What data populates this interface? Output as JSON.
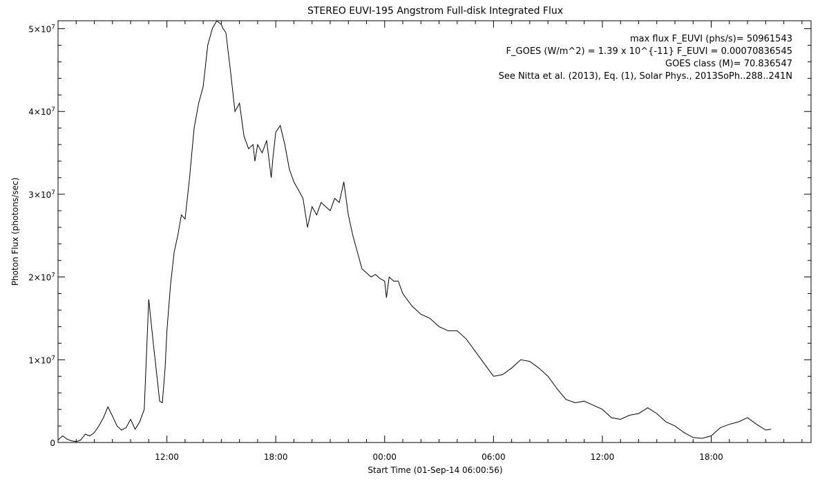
{
  "chart_data": {
    "type": "line",
    "title": "STEREO EUVI-195 Angstrom Full-disk Integrated Flux",
    "xlabel": "Start Time (01-Sep-14 06:00:56)",
    "ylabel": "Photon Flux (photons/sec)",
    "xlim": [
      6.0,
      47.5
    ],
    "ylim": [
      0,
      50961543
    ],
    "grid": false,
    "x_ticks": [
      {
        "value": 12,
        "label": "12:00"
      },
      {
        "value": 18,
        "label": "18:00"
      },
      {
        "value": 24,
        "label": "00:00"
      },
      {
        "value": 30,
        "label": "06:00"
      },
      {
        "value": 36,
        "label": "12:00"
      },
      {
        "value": 42,
        "label": "18:00"
      }
    ],
    "y_ticks": [
      {
        "value": 0,
        "label": "0"
      },
      {
        "value": 10000000,
        "mant": "1",
        "base": "×10",
        "exp": "7"
      },
      {
        "value": 20000000,
        "mant": "2",
        "base": "×10",
        "exp": "7"
      },
      {
        "value": 30000000,
        "mant": "3",
        "base": "×10",
        "exp": "7"
      },
      {
        "value": 40000000,
        "mant": "4",
        "base": "×10",
        "exp": "7"
      },
      {
        "value": 50000000,
        "mant": "5",
        "base": "×10",
        "exp": "7"
      }
    ],
    "annotations": [
      "max flux F_EUVI (phs/s)= 50961543",
      "F_GOES (W/m^2) = 1.39 x 10^{-11} F_EUVI = 0.00070836545",
      "GOES class (M)= 70.836547",
      "See Nitta et al. (2013), Eq. (1), Solar Phys., 2013SoPh..288..241N"
    ],
    "series": [
      {
        "color": "#000000",
        "x": [
          6.0,
          6.25,
          6.5,
          6.75,
          7.0,
          7.25,
          7.5,
          7.75,
          8.0,
          8.25,
          8.5,
          8.75,
          9.0,
          9.25,
          9.5,
          9.75,
          10.0,
          10.25,
          10.5,
          10.75,
          11.0,
          11.25,
          11.5,
          11.6,
          11.75,
          11.9,
          12.0,
          12.2,
          12.4,
          12.6,
          12.8,
          13.0,
          13.25,
          13.5,
          13.75,
          14.0,
          14.25,
          14.5,
          14.75,
          15.0,
          15.1,
          15.25,
          15.5,
          15.75,
          16.0,
          16.25,
          16.5,
          16.75,
          16.85,
          17.0,
          17.25,
          17.5,
          17.75,
          17.85,
          18.0,
          18.25,
          18.5,
          18.75,
          19.0,
          19.25,
          19.5,
          19.75,
          20.0,
          20.25,
          20.5,
          20.75,
          21.0,
          21.25,
          21.5,
          21.75,
          22.0,
          22.25,
          22.5,
          22.75,
          23.0,
          23.25,
          23.5,
          23.75,
          24.0,
          24.1,
          24.25,
          24.5,
          24.75,
          25.0,
          25.5,
          26.0,
          26.5,
          27.0,
          27.5,
          28.0,
          28.5,
          29.0,
          29.5,
          30.0,
          30.5,
          31.0,
          31.5,
          32.0,
          32.5,
          33.0,
          33.5,
          34.0,
          34.5,
          35.0,
          35.5,
          36.0,
          36.5,
          37.0,
          37.5,
          38.0,
          38.5,
          39.0,
          39.5,
          40.0,
          40.5,
          41.0,
          41.5,
          42.0,
          42.5,
          43.0,
          43.5,
          44.0,
          44.5,
          45.0,
          45.3
        ],
        "y": [
          300000,
          800000,
          400000,
          200000,
          100000,
          300000,
          1000000,
          800000,
          1200000,
          2000000,
          3000000,
          4300000,
          3200000,
          2000000,
          1500000,
          1800000,
          2800000,
          1600000,
          2500000,
          4000000,
          17300000,
          12000000,
          7000000,
          5000000,
          4800000,
          9000000,
          13500000,
          19000000,
          23000000,
          25000000,
          27500000,
          27000000,
          32000000,
          38000000,
          41000000,
          43000000,
          48000000,
          50000000,
          50961543,
          50500000,
          50000000,
          49500000,
          45000000,
          40000000,
          41000000,
          37000000,
          35500000,
          36000000,
          34000000,
          36000000,
          35000000,
          36500000,
          32000000,
          34500000,
          37500000,
          38300000,
          36000000,
          33000000,
          31500000,
          30500000,
          29500000,
          26000000,
          28500000,
          27500000,
          29000000,
          28500000,
          28000000,
          29500000,
          29000000,
          31500000,
          27500000,
          25000000,
          23000000,
          21000000,
          20500000,
          20000000,
          20300000,
          19800000,
          19500000,
          17500000,
          20000000,
          19500000,
          19500000,
          18000000,
          16500000,
          15500000,
          15000000,
          14000000,
          13500000,
          13500000,
          12500000,
          11000000,
          9500000,
          8000000,
          8200000,
          9000000,
          10000000,
          9800000,
          9000000,
          8000000,
          6500000,
          5200000,
          4800000,
          5000000,
          4500000,
          4000000,
          3000000,
          2800000,
          3300000,
          3500000,
          4200000,
          3500000,
          2500000,
          2000000,
          1200000,
          600000,
          500000,
          800000,
          1800000,
          2200000,
          2500000,
          3000000,
          2200000,
          1500000,
          1600000
        ]
      }
    ]
  }
}
